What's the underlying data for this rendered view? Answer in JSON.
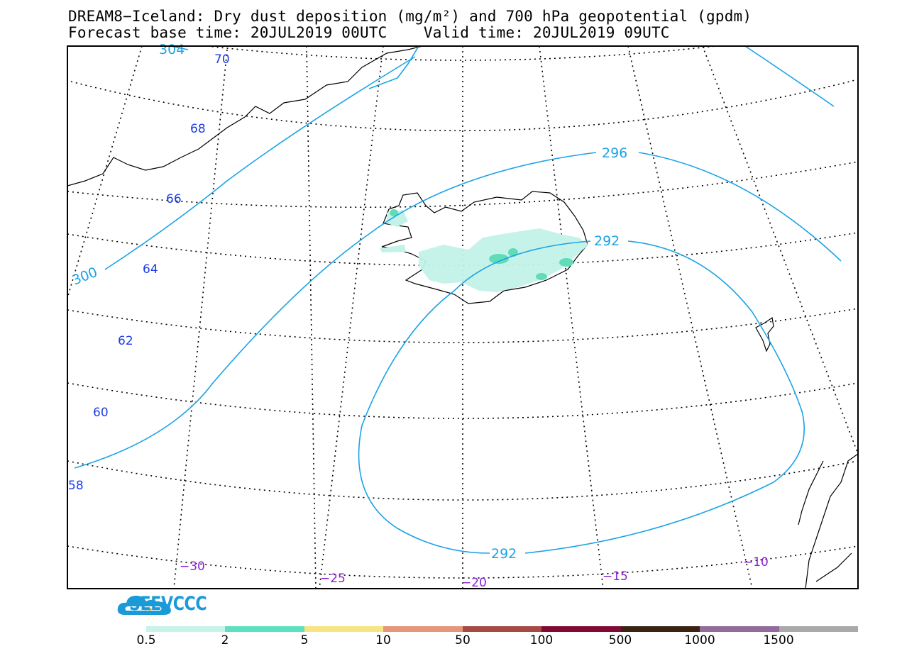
{
  "header": {
    "title_line1": "DREAM8−Iceland: Dry dust deposition (mg/m²) and 700 hPa geopotential (gpdm)",
    "title_line2": "Forecast base time: 20JUL2019 00UTC    Valid time: 20JUL2019 09UTC"
  },
  "map": {
    "latitude_labels": [
      "70",
      "68",
      "66",
      "64",
      "62",
      "60",
      "58"
    ],
    "longitude_labels": [
      "−30",
      "−25",
      "−20",
      "−15",
      "−10"
    ],
    "contour_labels": [
      "304",
      "300",
      "296",
      "292",
      "292"
    ],
    "colors": {
      "coastline": "#000000",
      "contour": "#1ba3e6",
      "lat_label": "#1e3ce8",
      "lon_label": "#8a1fd6",
      "deposition_low": "#c3f2e8",
      "deposition_mid": "#5fdcb8"
    }
  },
  "branding": {
    "name": "SEEVCCC",
    "icon": "cloud-logo-icon"
  },
  "colorbar": {
    "ticks": [
      "0.5",
      "2",
      "5",
      "10",
      "50",
      "100",
      "500",
      "1000",
      "1500"
    ],
    "colors": [
      "#c8f3ea",
      "#5ce0bd",
      "#f8e483",
      "#e8967a",
      "#a54b43",
      "#800a33",
      "#3b2312",
      "#946b9c",
      "#a9a9a9"
    ]
  }
}
